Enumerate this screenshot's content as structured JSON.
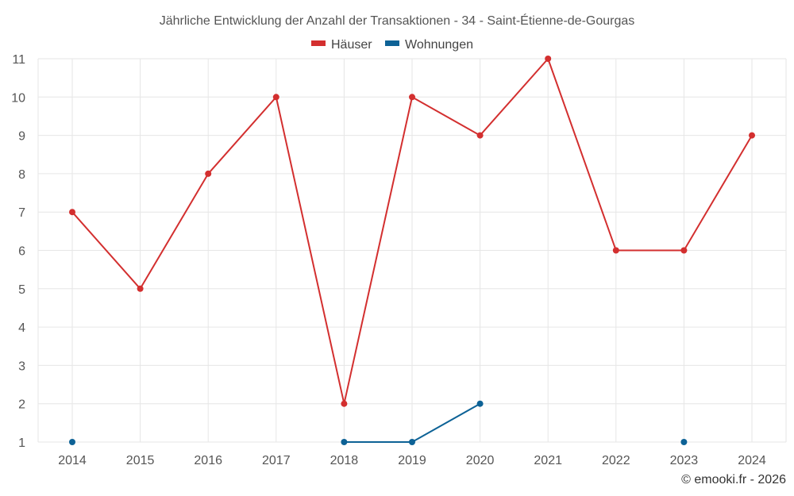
{
  "chart_data": {
    "type": "line",
    "title": "Jährliche Entwicklung der Anzahl der Transaktionen - 34 - Saint-Étienne-de-Gourgas",
    "xlabel": "",
    "ylabel": "",
    "categories": [
      "2014",
      "2015",
      "2016",
      "2017",
      "2018",
      "2019",
      "2020",
      "2021",
      "2022",
      "2023",
      "2024"
    ],
    "ylim": [
      1,
      11
    ],
    "yticks": [
      "1",
      "2",
      "3",
      "4",
      "5",
      "6",
      "7",
      "8",
      "9",
      "10",
      "11"
    ],
    "grid": true,
    "legend_position": "top-center",
    "series": [
      {
        "name": "Häuser",
        "color": "#d32f2f",
        "values": [
          7,
          5,
          8,
          10,
          2,
          10,
          9,
          11,
          6,
          6,
          9
        ]
      },
      {
        "name": "Wohnungen",
        "color": "#0d6296",
        "values": [
          1,
          null,
          null,
          null,
          1,
          1,
          2,
          null,
          null,
          1,
          null
        ]
      }
    ]
  },
  "credit": "© emooki.fr - 2026"
}
